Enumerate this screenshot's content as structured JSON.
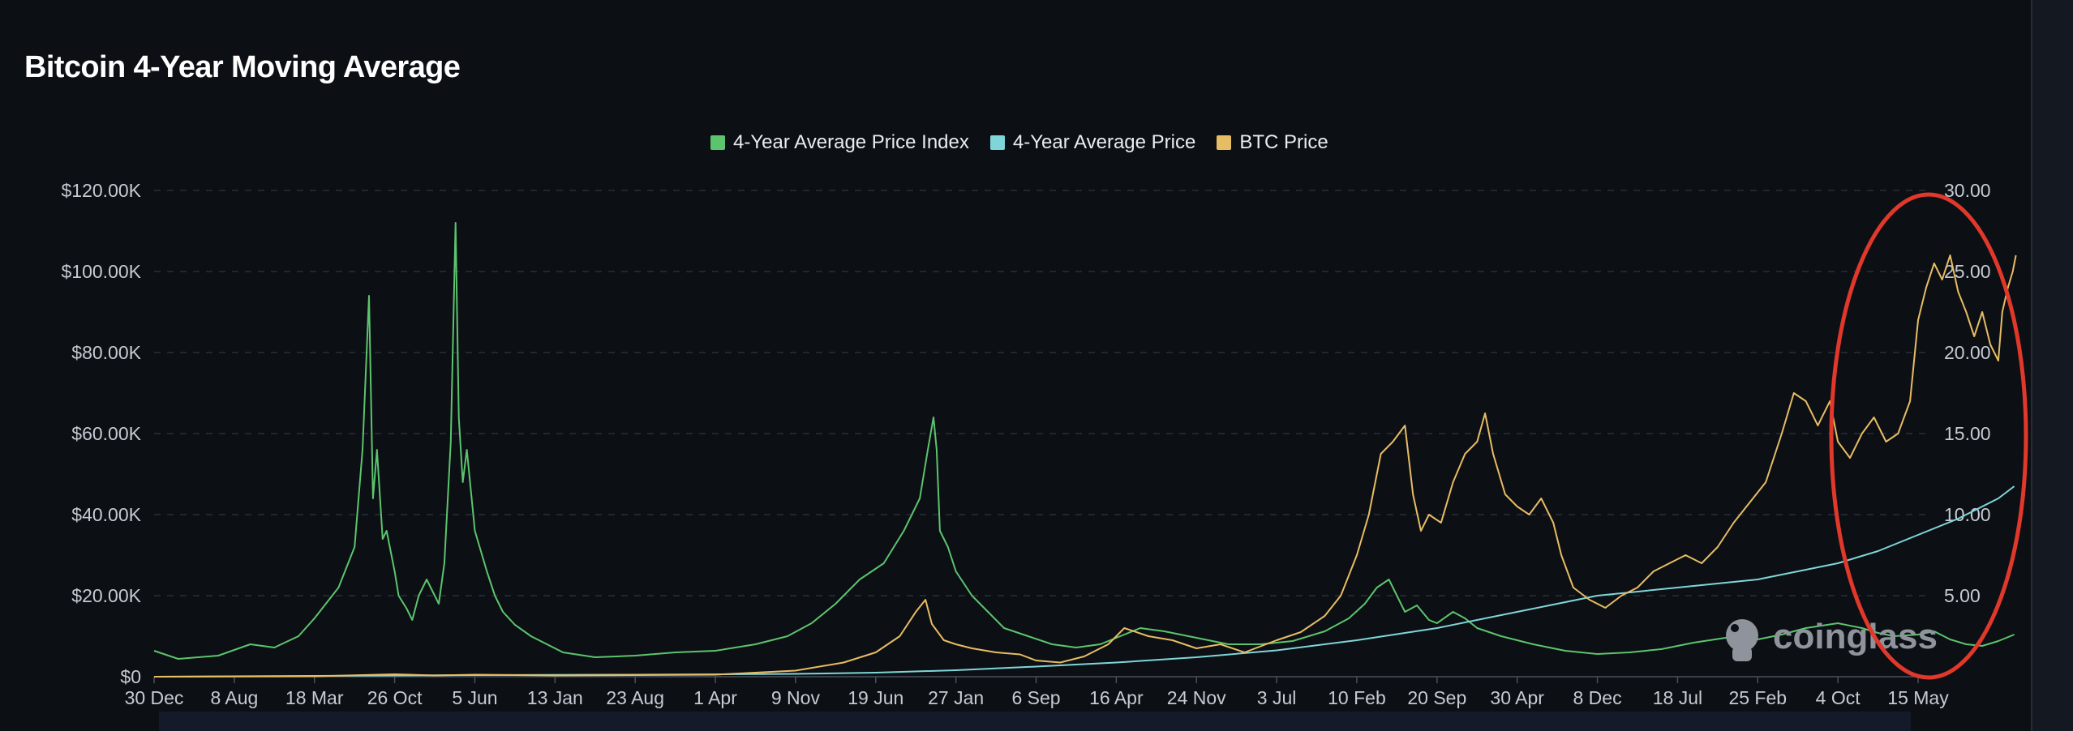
{
  "page_title": "Bitcoin 4-Year Moving Average",
  "legend": [
    {
      "label": "4-Year Average Price Index",
      "color": "#5cc46e"
    },
    {
      "label": "4-Year Average Price",
      "color": "#7fd6d8"
    },
    {
      "label": "BTC Price",
      "color": "#e7bd63"
    }
  ],
  "watermark": {
    "text": "coinglass",
    "icon": "coinglass-logo-icon"
  },
  "annotation": {
    "shape": "ellipse",
    "color": "#e0382a"
  },
  "chart_data": {
    "type": "line",
    "title": "Bitcoin 4-Year Moving Average",
    "x_tick_labels": [
      "30 Dec",
      "8 Aug",
      "18 Mar",
      "26 Oct",
      "5 Jun",
      "13 Jan",
      "23 Aug",
      "1 Apr",
      "9 Nov",
      "19 Jun",
      "27 Jan",
      "6 Sep",
      "16 Apr",
      "24 Nov",
      "3 Jul",
      "10 Feb",
      "20 Sep",
      "30 Apr",
      "8 Dec",
      "18 Jul",
      "25 Feb",
      "4 Oct",
      "15 May"
    ],
    "y_left": {
      "ticks": [
        "$0",
        "$20.00K",
        "$40.00K",
        "$60.00K",
        "$80.00K",
        "$100.00K",
        "$120.00K"
      ],
      "range": [
        0,
        120000
      ]
    },
    "y_right": {
      "ticks": [
        "5.00",
        "10.00",
        "15.00",
        "20.00",
        "25.00",
        "30.00"
      ],
      "range": [
        0,
        30
      ]
    },
    "grid": "horizontal-dashed",
    "legend_position": "top-center",
    "series": [
      {
        "name": "4-Year Average Price Index",
        "axis": "right",
        "color": "#5cc46e",
        "points": [
          [
            0,
            1.6
          ],
          [
            0.3,
            1.1
          ],
          [
            0.8,
            1.3
          ],
          [
            1.2,
            2.0
          ],
          [
            1.5,
            1.8
          ],
          [
            1.8,
            2.5
          ],
          [
            2.0,
            3.6
          ],
          [
            2.3,
            5.5
          ],
          [
            2.5,
            8.0
          ],
          [
            2.6,
            14.0
          ],
          [
            2.68,
            23.5
          ],
          [
            2.73,
            11.0
          ],
          [
            2.78,
            14.0
          ],
          [
            2.85,
            8.5
          ],
          [
            2.9,
            9.0
          ],
          [
            3.0,
            6.5
          ],
          [
            3.05,
            5.0
          ],
          [
            3.15,
            4.2
          ],
          [
            3.22,
            3.5
          ],
          [
            3.3,
            5.0
          ],
          [
            3.4,
            6.0
          ],
          [
            3.55,
            4.5
          ],
          [
            3.62,
            7.0
          ],
          [
            3.7,
            14.5
          ],
          [
            3.76,
            28.0
          ],
          [
            3.8,
            16.0
          ],
          [
            3.85,
            12.0
          ],
          [
            3.9,
            14.0
          ],
          [
            4.0,
            9.0
          ],
          [
            4.15,
            6.5
          ],
          [
            4.25,
            5.0
          ],
          [
            4.35,
            4.0
          ],
          [
            4.5,
            3.2
          ],
          [
            4.7,
            2.5
          ],
          [
            4.9,
            2.0
          ],
          [
            5.1,
            1.5
          ],
          [
            5.5,
            1.2
          ],
          [
            6.0,
            1.3
          ],
          [
            6.5,
            1.5
          ],
          [
            7.0,
            1.6
          ],
          [
            7.5,
            2.0
          ],
          [
            7.9,
            2.5
          ],
          [
            8.2,
            3.3
          ],
          [
            8.5,
            4.5
          ],
          [
            8.8,
            6.0
          ],
          [
            9.1,
            7.0
          ],
          [
            9.35,
            9.0
          ],
          [
            9.55,
            11.0
          ],
          [
            9.65,
            14.0
          ],
          [
            9.72,
            16.0
          ],
          [
            9.76,
            14.0
          ],
          [
            9.8,
            9.0
          ],
          [
            9.9,
            8.0
          ],
          [
            10.0,
            6.5
          ],
          [
            10.2,
            5.0
          ],
          [
            10.4,
            4.0
          ],
          [
            10.6,
            3.0
          ],
          [
            10.9,
            2.5
          ],
          [
            11.2,
            2.0
          ],
          [
            11.5,
            1.8
          ],
          [
            11.8,
            2.0
          ],
          [
            12.1,
            2.6
          ],
          [
            12.3,
            3.0
          ],
          [
            12.6,
            2.8
          ],
          [
            13.0,
            2.4
          ],
          [
            13.4,
            2.0
          ],
          [
            13.8,
            2.0
          ],
          [
            14.2,
            2.2
          ],
          [
            14.6,
            2.8
          ],
          [
            14.9,
            3.6
          ],
          [
            15.1,
            4.5
          ],
          [
            15.25,
            5.5
          ],
          [
            15.4,
            6.0
          ],
          [
            15.5,
            5.0
          ],
          [
            15.6,
            4.0
          ],
          [
            15.75,
            4.4
          ],
          [
            15.9,
            3.5
          ],
          [
            16.0,
            3.3
          ],
          [
            16.2,
            4.0
          ],
          [
            16.35,
            3.6
          ],
          [
            16.5,
            3.0
          ],
          [
            16.8,
            2.5
          ],
          [
            17.2,
            2.0
          ],
          [
            17.6,
            1.6
          ],
          [
            18.0,
            1.4
          ],
          [
            18.4,
            1.5
          ],
          [
            18.8,
            1.7
          ],
          [
            19.2,
            2.1
          ],
          [
            19.6,
            2.4
          ],
          [
            20.0,
            2.3
          ],
          [
            20.3,
            2.6
          ],
          [
            20.6,
            3.0
          ],
          [
            21.0,
            3.3
          ],
          [
            21.3,
            3.0
          ],
          [
            21.5,
            2.7
          ],
          [
            21.7,
            2.5
          ],
          [
            22.0,
            2.6
          ],
          [
            22.2,
            2.8
          ],
          [
            22.4,
            2.3
          ],
          [
            22.6,
            2.0
          ],
          [
            22.8,
            1.9
          ],
          [
            23.0,
            2.2
          ],
          [
            23.2,
            2.6
          ]
        ]
      },
      {
        "name": "4-Year Average Price",
        "axis": "left",
        "color": "#7fd6d8",
        "points": [
          [
            0,
            0
          ],
          [
            2,
            200
          ],
          [
            4,
            400
          ],
          [
            6,
            500
          ],
          [
            8,
            700
          ],
          [
            9,
            1000
          ],
          [
            10,
            1600
          ],
          [
            11,
            2500
          ],
          [
            12,
            3500
          ],
          [
            13,
            4800
          ],
          [
            14,
            6500
          ],
          [
            15,
            9000
          ],
          [
            15.5,
            10500
          ],
          [
            16,
            12000
          ],
          [
            17,
            16000
          ],
          [
            18,
            20000
          ],
          [
            19,
            22000
          ],
          [
            20,
            24000
          ],
          [
            21,
            28000
          ],
          [
            21.5,
            31000
          ],
          [
            22,
            35000
          ],
          [
            22.5,
            39000
          ],
          [
            23,
            44000
          ],
          [
            23.2,
            47000
          ]
        ]
      },
      {
        "name": "BTC Price",
        "axis": "left",
        "color": "#e7bd63",
        "points": [
          [
            0,
            0
          ],
          [
            2,
            100
          ],
          [
            3,
            600
          ],
          [
            3.5,
            300
          ],
          [
            4,
            500
          ],
          [
            5,
            300
          ],
          [
            6,
            400
          ],
          [
            7,
            500
          ],
          [
            8,
            1500
          ],
          [
            8.6,
            3500
          ],
          [
            9.0,
            6000
          ],
          [
            9.3,
            10000
          ],
          [
            9.5,
            16000
          ],
          [
            9.62,
            19000
          ],
          [
            9.7,
            13000
          ],
          [
            9.85,
            9000
          ],
          [
            10.0,
            8000
          ],
          [
            10.2,
            7000
          ],
          [
            10.5,
            6000
          ],
          [
            10.8,
            5500
          ],
          [
            11.0,
            4000
          ],
          [
            11.3,
            3500
          ],
          [
            11.6,
            5000
          ],
          [
            11.9,
            8000
          ],
          [
            12.1,
            12000
          ],
          [
            12.4,
            10000
          ],
          [
            12.7,
            9000
          ],
          [
            13.0,
            7000
          ],
          [
            13.3,
            8000
          ],
          [
            13.6,
            6000
          ],
          [
            14.0,
            9000
          ],
          [
            14.3,
            11000
          ],
          [
            14.6,
            15000
          ],
          [
            14.8,
            20000
          ],
          [
            15.0,
            30000
          ],
          [
            15.15,
            40000
          ],
          [
            15.3,
            55000
          ],
          [
            15.45,
            58000
          ],
          [
            15.6,
            62000
          ],
          [
            15.7,
            45000
          ],
          [
            15.8,
            36000
          ],
          [
            15.9,
            40000
          ],
          [
            16.05,
            38000
          ],
          [
            16.2,
            48000
          ],
          [
            16.35,
            55000
          ],
          [
            16.5,
            58000
          ],
          [
            16.6,
            65000
          ],
          [
            16.7,
            55000
          ],
          [
            16.85,
            45000
          ],
          [
            17.0,
            42000
          ],
          [
            17.15,
            40000
          ],
          [
            17.3,
            44000
          ],
          [
            17.45,
            38000
          ],
          [
            17.55,
            30000
          ],
          [
            17.7,
            22000
          ],
          [
            17.9,
            19000
          ],
          [
            18.1,
            17000
          ],
          [
            18.3,
            20000
          ],
          [
            18.5,
            22000
          ],
          [
            18.7,
            26000
          ],
          [
            18.9,
            28000
          ],
          [
            19.1,
            30000
          ],
          [
            19.3,
            28000
          ],
          [
            19.5,
            32000
          ],
          [
            19.7,
            38000
          ],
          [
            19.9,
            43000
          ],
          [
            20.1,
            48000
          ],
          [
            20.3,
            60000
          ],
          [
            20.45,
            70000
          ],
          [
            20.6,
            68000
          ],
          [
            20.75,
            62000
          ],
          [
            20.9,
            68000
          ],
          [
            21.0,
            58000
          ],
          [
            21.15,
            54000
          ],
          [
            21.3,
            60000
          ],
          [
            21.45,
            64000
          ],
          [
            21.6,
            58000
          ],
          [
            21.75,
            60000
          ],
          [
            21.9,
            68000
          ],
          [
            22.0,
            88000
          ],
          [
            22.1,
            96000
          ],
          [
            22.2,
            102000
          ],
          [
            22.3,
            98000
          ],
          [
            22.4,
            104000
          ],
          [
            22.5,
            95000
          ],
          [
            22.6,
            90000
          ],
          [
            22.7,
            84000
          ],
          [
            22.8,
            90000
          ],
          [
            22.9,
            82000
          ],
          [
            23.0,
            78000
          ],
          [
            23.05,
            90000
          ],
          [
            23.12,
            96000
          ],
          [
            23.18,
            100000
          ],
          [
            23.22,
            104000
          ]
        ]
      }
    ]
  }
}
